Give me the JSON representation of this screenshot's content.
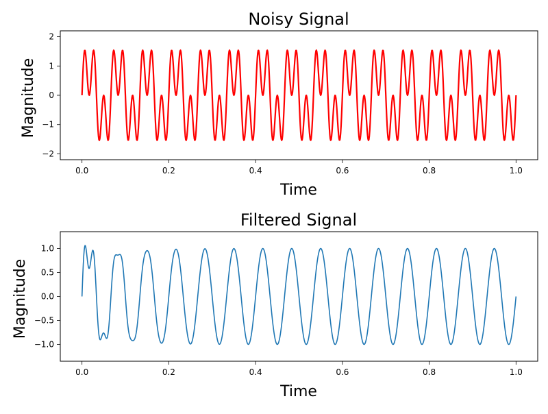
{
  "chart_data": [
    {
      "type": "line",
      "title": "Noisy Signal",
      "xlabel": "Time",
      "ylabel": "Magnitude",
      "xlim": [
        -0.05,
        1.05
      ],
      "ylim": [
        -2.2,
        2.2
      ],
      "xticks": [
        0.0,
        0.2,
        0.4,
        0.6,
        0.8,
        1.0
      ],
      "xtick_labels": [
        "0.0",
        "0.2",
        "0.4",
        "0.6",
        "0.8",
        "1.0"
      ],
      "yticks": [
        -2,
        -1,
        0,
        1,
        2
      ],
      "ytick_labels": [
        "−2",
        "−1",
        "0",
        "1",
        "2"
      ],
      "grid": false,
      "series": [
        {
          "color": "#ff0000",
          "linewidth": 2.2,
          "function": "sin(2*pi*15*t) + sin(2*pi*45*t)",
          "t_range": [
            0,
            1
          ],
          "samples": 1000
        }
      ]
    },
    {
      "type": "line",
      "title": "Filtered Signal",
      "xlabel": "Time",
      "ylabel": "Magnitude",
      "xlim": [
        -0.05,
        1.05
      ],
      "ylim": [
        -1.35,
        1.35
      ],
      "xticks": [
        0.0,
        0.2,
        0.4,
        0.6,
        0.8,
        1.0
      ],
      "xtick_labels": [
        "0.0",
        "0.2",
        "0.4",
        "0.6",
        "0.8",
        "1.0"
      ],
      "yticks": [
        -1.0,
        -0.5,
        0.0,
        0.5,
        1.0
      ],
      "ytick_labels": [
        "−1.0",
        "−0.5",
        "0.0",
        "0.5",
        "1.0"
      ],
      "grid": false,
      "series": [
        {
          "color": "#1f77b4",
          "linewidth": 1.6,
          "function": "sin(2*pi*15*t) with decaying 45 Hz residual (transient first ~0.2 s)",
          "t_range": [
            0,
            1
          ],
          "samples": 1000
        }
      ]
    }
  ]
}
